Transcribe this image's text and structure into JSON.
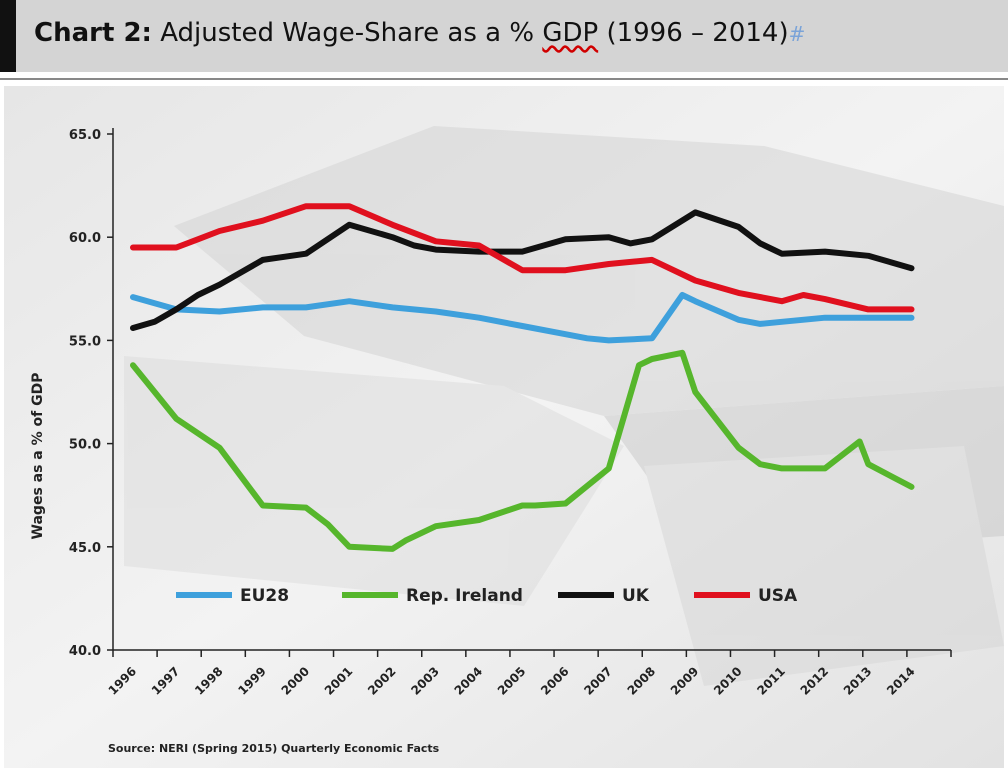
{
  "header": {
    "title_bold": "Chart 2:",
    "title_main": "Adjusted Wage-Share as a %",
    "title_gdp": "GDP",
    "title_years": "(1996 – 2014)",
    "title_mark": "#"
  },
  "chart_data": {
    "type": "line",
    "ylabel": "Wages as a % of GDP",
    "xlabel": "",
    "ylim": [
      40,
      65
    ],
    "yticks": [
      "65.0",
      "60.0",
      "55.0",
      "50.0",
      "45.0",
      "40.0"
    ],
    "ytick_values": [
      65,
      60,
      55,
      50,
      45,
      40
    ],
    "categories": [
      "1996",
      "1997",
      "1998",
      "1999",
      "2000",
      "2001",
      "2002",
      "2003",
      "2004",
      "2005",
      "2006",
      "2007",
      "2008",
      "2009",
      "2010",
      "2011",
      "2012",
      "2013",
      "2014"
    ],
    "legend_position": "bottom-inside",
    "series": [
      {
        "name": "EU28",
        "color": "#3ea0dc",
        "x": [
          1996,
          1996.5,
          1997,
          1998,
          1999,
          2000,
          2001,
          2002,
          2003,
          2004,
          2005,
          2006,
          2006.5,
          2007,
          2008,
          2008.7,
          2009,
          2010,
          2010.5,
          2011,
          2012,
          2013,
          2014
        ],
        "values": [
          57.1,
          56.8,
          56.5,
          56.4,
          56.6,
          56.6,
          56.9,
          56.6,
          56.4,
          56.1,
          55.7,
          55.3,
          55.1,
          55.0,
          55.1,
          57.2,
          56.9,
          56.0,
          55.8,
          55.9,
          56.1,
          56.1,
          56.1
        ]
      },
      {
        "name": "Rep. Ireland",
        "color": "#56b62c",
        "x": [
          1996,
          1997,
          1998,
          1999,
          2000,
          2000.5,
          2001,
          2002,
          2002.3,
          2003,
          2004,
          2005,
          2005.3,
          2006,
          2007,
          2007.7,
          2008,
          2008.7,
          2009,
          2010,
          2010.5,
          2011,
          2012,
          2012.8,
          2013,
          2014
        ],
        "values": [
          53.8,
          51.2,
          49.8,
          47.0,
          46.9,
          46.1,
          45.0,
          44.9,
          45.3,
          46.0,
          46.3,
          47.0,
          47.0,
          47.1,
          48.8,
          53.8,
          54.1,
          54.4,
          52.5,
          49.8,
          49.0,
          48.8,
          48.8,
          50.1,
          49.0,
          47.9
        ]
      },
      {
        "name": "UK",
        "color": "#111111",
        "x": [
          1996,
          1996.5,
          1997,
          1997.5,
          1998,
          1999,
          2000,
          2001,
          2002,
          2002.5,
          2003,
          2004,
          2005,
          2006,
          2007,
          2007.5,
          2008,
          2009,
          2010,
          2010.5,
          2011,
          2012,
          2013,
          2014
        ],
        "values": [
          55.6,
          55.9,
          56.5,
          57.2,
          57.7,
          58.9,
          59.2,
          60.6,
          60.0,
          59.6,
          59.4,
          59.3,
          59.3,
          59.9,
          60.0,
          59.7,
          59.9,
          61.2,
          60.5,
          59.7,
          59.2,
          59.3,
          59.1,
          58.5
        ]
      },
      {
        "name": "USA",
        "color": "#e0101e",
        "x": [
          1996,
          1997,
          1997.5,
          1998,
          1999,
          2000,
          2001,
          2002,
          2003,
          2004,
          2005,
          2006,
          2007,
          2008,
          2009,
          2010,
          2011,
          2011.5,
          2012,
          2013,
          2014
        ],
        "values": [
          59.5,
          59.5,
          59.9,
          60.3,
          60.8,
          61.5,
          61.5,
          60.6,
          59.8,
          59.6,
          58.4,
          58.4,
          58.7,
          58.9,
          57.9,
          57.3,
          56.9,
          57.2,
          57.0,
          56.5,
          56.5
        ]
      }
    ],
    "source": "Source: NERI (Spring 2015) Quarterly Economic Facts"
  }
}
